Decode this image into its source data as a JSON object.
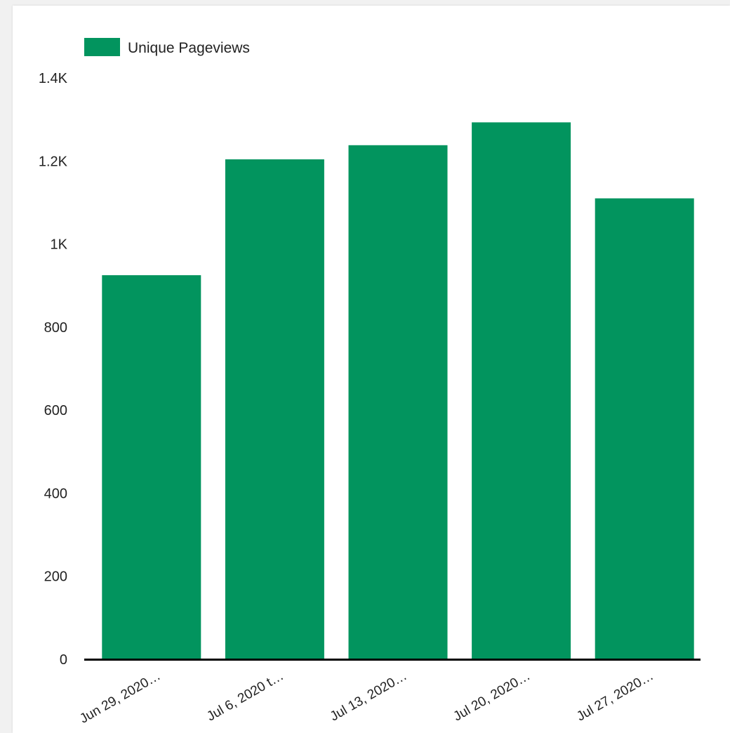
{
  "chart_data": {
    "type": "bar",
    "categories": [
      "Jun 29, 2020…",
      "Jul 6, 2020 t…",
      "Jul 13, 2020…",
      "Jul 20, 2020…",
      "Jul 27, 2020…"
    ],
    "series": [
      {
        "name": "Unique Pageviews",
        "values": [
          925,
          1204,
          1238,
          1293,
          1110
        ],
        "color": "#02945e"
      }
    ],
    "ylim": [
      0,
      1400
    ],
    "yticks": [
      0,
      200,
      400,
      600,
      800,
      1000,
      1200,
      1400
    ],
    "ytick_labels": [
      "0",
      "200",
      "400",
      "600",
      "800",
      "1K",
      "1.2K",
      "1.4K"
    ],
    "legend": "top-left",
    "grid": false
  }
}
